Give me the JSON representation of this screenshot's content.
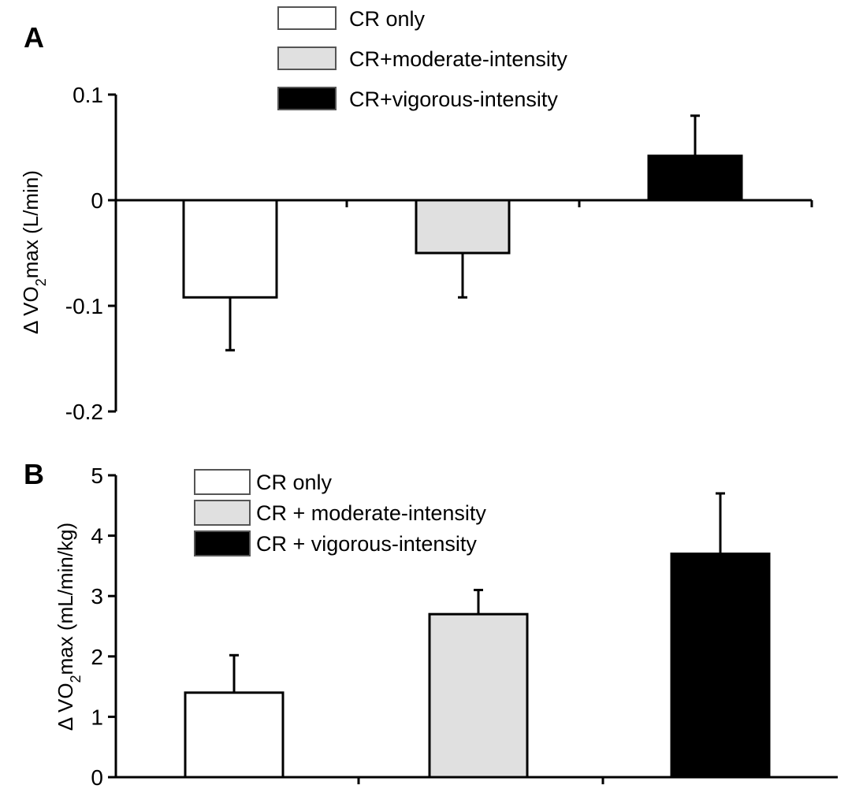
{
  "chart_data": [
    {
      "panel": "A",
      "type": "bar",
      "categories": [
        "CR only",
        "CR+moderate-intensity",
        "CR+vigorous-intensity"
      ],
      "values": [
        -0.092,
        -0.05,
        0.042
      ],
      "errors": [
        0.05,
        0.042,
        0.038
      ],
      "colors": [
        "#ffffff",
        "#e0e0e0",
        "#000000"
      ],
      "legend": [
        "CR only",
        "CR+moderate-intensity",
        "CR+vigorous-intensity"
      ],
      "legend_placement": "top-center",
      "ylabel": {
        "prefix": "Δ VO",
        "sub": "2",
        "suffix": "max (L/min)"
      },
      "ylim": [
        -0.2,
        0.1
      ],
      "yticks": [
        0.1,
        0,
        -0.1,
        -0.2
      ],
      "ytick_labels": [
        "0.1",
        "0",
        "-0.1",
        "-0.2"
      ],
      "grid": false
    },
    {
      "panel": "B",
      "type": "bar",
      "categories": [
        "CR only",
        "CR + moderate-intensity",
        "CR + vigorous-intensity"
      ],
      "values": [
        1.4,
        2.7,
        3.7
      ],
      "errors": [
        0.62,
        0.4,
        1.0
      ],
      "colors": [
        "#ffffff",
        "#e0e0e0",
        "#000000"
      ],
      "legend": [
        "CR only",
        "CR + moderate-intensity",
        "CR + vigorous-intensity"
      ],
      "legend_placement": "top-left",
      "ylabel": {
        "prefix": "Δ VO",
        "sub": "2",
        "suffix": "max (mL/min/kg)"
      },
      "ylim": [
        0,
        5
      ],
      "yticks": [
        0,
        1,
        2,
        3,
        4,
        5
      ],
      "ytick_labels": [
        "0",
        "1",
        "2",
        "3",
        "4",
        "5"
      ],
      "grid": false
    }
  ]
}
